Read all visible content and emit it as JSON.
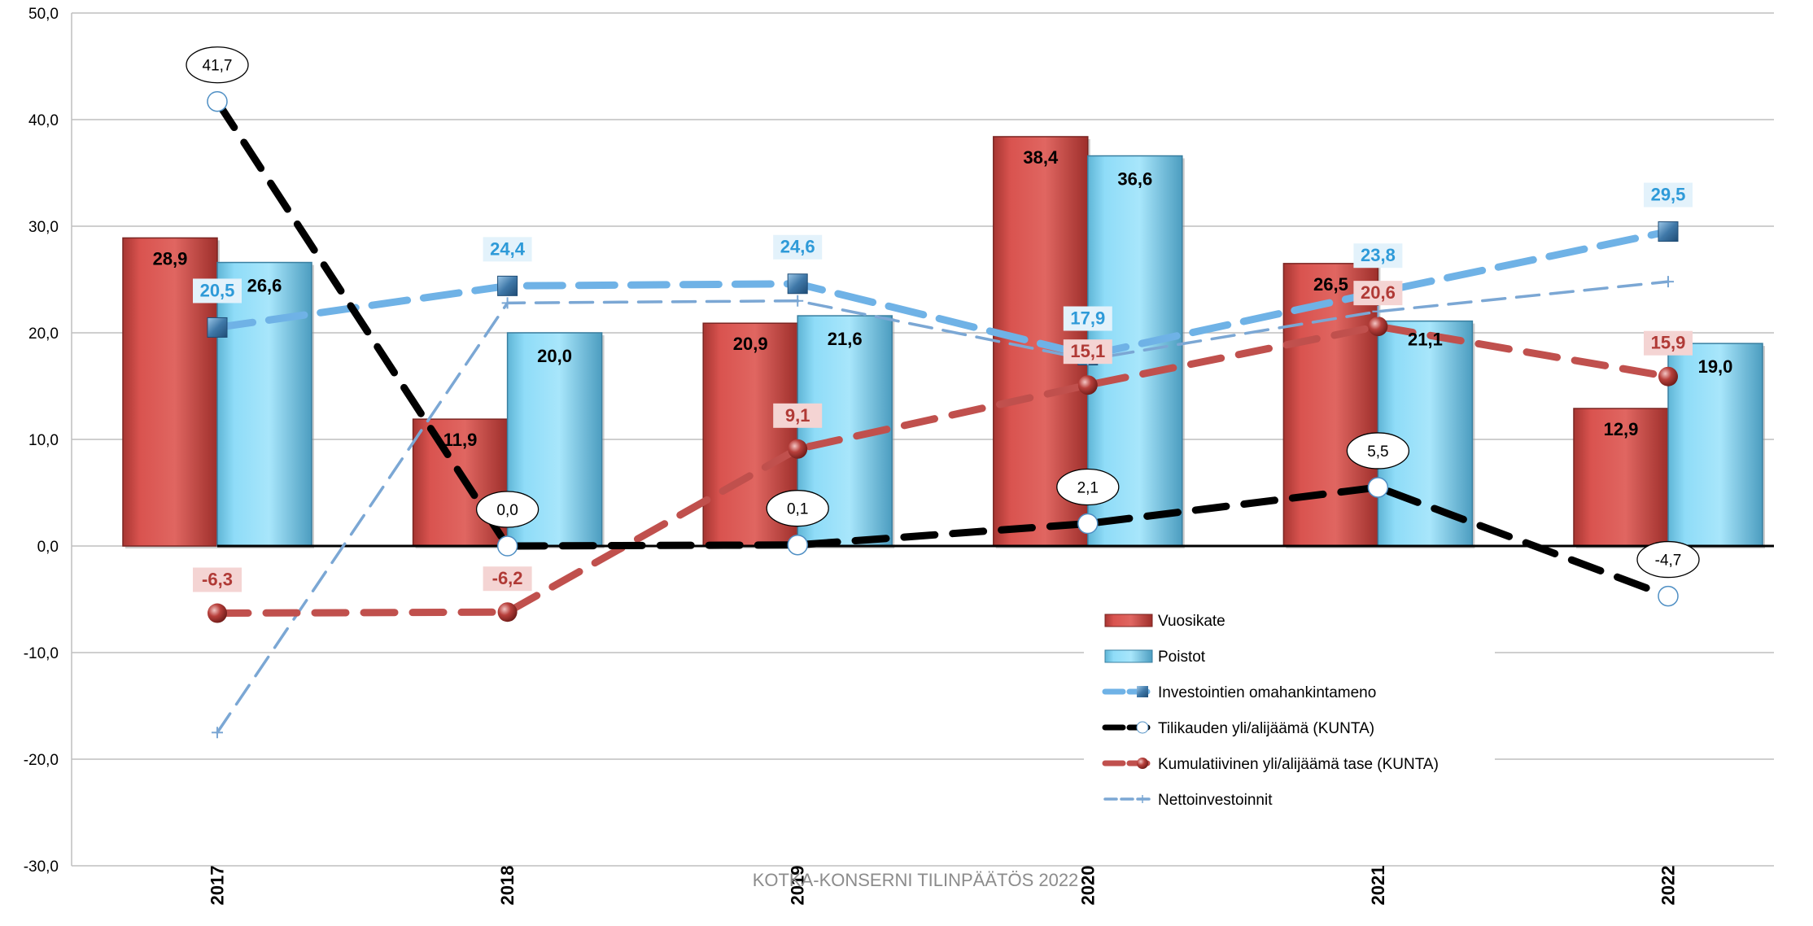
{
  "chart_data": {
    "type": "bar",
    "title": "",
    "xlabel": "",
    "ylabel": "",
    "ylim": [
      -30,
      50
    ],
    "ytick_step": 10,
    "yticks": [
      "-30,0",
      "-20,0",
      "-10,0",
      "0,0",
      "10,0",
      "20,0",
      "30,0",
      "40,0",
      "50,0"
    ],
    "grid": true,
    "legend_position": "bottom-center",
    "categories": [
      "2017",
      "2018",
      "2019",
      "2020",
      "2021",
      "2022"
    ],
    "series": [
      {
        "name": "Vuosikate",
        "kind": "bar",
        "color": "#d9534f",
        "values": [
          28.9,
          11.9,
          20.9,
          38.4,
          26.5,
          12.9
        ],
        "labels": [
          "28,9",
          "11,9",
          "20,9",
          "38,4",
          "26,5",
          "12,9"
        ]
      },
      {
        "name": "Poistot",
        "kind": "bar",
        "color": "#8fdcf8",
        "values": [
          26.6,
          20.0,
          21.6,
          36.6,
          21.1,
          19.0
        ],
        "labels": [
          "26,6",
          "20,0",
          "21,6",
          "36,6",
          "21,1",
          "19,0"
        ]
      },
      {
        "name": "Investointien omahankintameno",
        "kind": "line",
        "color": "#6fb2e6",
        "values": [
          20.5,
          24.4,
          24.6,
          17.9,
          23.8,
          29.5
        ],
        "labels": [
          "20,5",
          "24,4",
          "24,6",
          "17,9",
          "23,8",
          "29,5"
        ]
      },
      {
        "name": "Tilikauden yli/alijäämä (KUNTA)",
        "kind": "line",
        "color": "#000000",
        "values": [
          41.7,
          0.0,
          0.1,
          2.1,
          5.5,
          -4.7
        ],
        "labels": [
          "41,7",
          "0,0",
          "0,1",
          "2,1",
          "5,5",
          "-4,7"
        ]
      },
      {
        "name": "Kumulatiivinen yli/alijäämä tase (KUNTA)",
        "kind": "line",
        "color": "#c0504d",
        "values": [
          -6.3,
          -6.2,
          9.1,
          15.1,
          20.6,
          15.9
        ],
        "labels": [
          "-6,3",
          "-6,2",
          "9,1",
          "15,1",
          "20,6",
          "15,9"
        ]
      },
      {
        "name": "Nettoinvestoinnit",
        "kind": "line",
        "color": "#7ba7d4",
        "values": [
          -17.5,
          22.8,
          23.0,
          17.5,
          22.0,
          24.8
        ],
        "labels": []
      }
    ],
    "watermark": "KOTKA-KONSERNI TILINPÄÄTÖS 2022"
  }
}
